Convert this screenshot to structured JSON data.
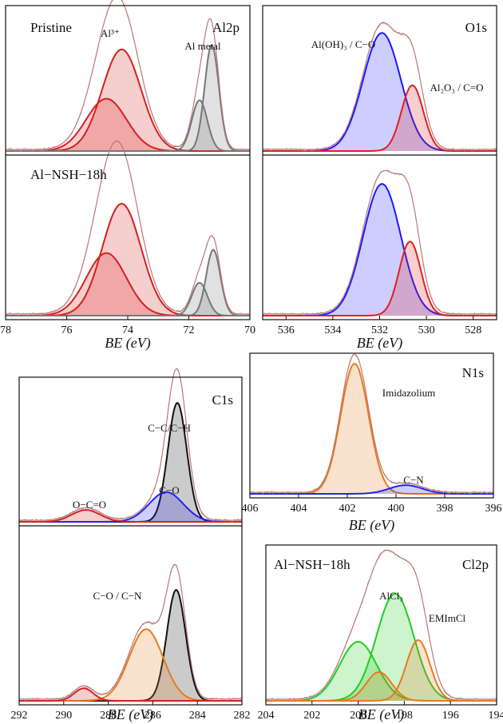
{
  "chart_data": [
    {
      "id": "al2p",
      "type": "area",
      "xlabel": "BE (eV)",
      "xlim": [
        78,
        70
      ],
      "x_ticks": [
        78,
        76,
        74,
        72,
        70
      ],
      "panels": [
        {
          "labels": [
            "Pristine",
            "Al2p",
            "Al³⁺",
            "Al metal"
          ],
          "components": [
            {
              "name": "Al³⁺",
              "center": 74.2,
              "fwhm": 1.5,
              "height": 0.68,
              "color": "#d42020"
            },
            {
              "name": "Al³⁺",
              "center": 74.7,
              "fwhm": 1.55,
              "height": 0.35,
              "color": "#d42020"
            },
            {
              "name": "Al metal",
              "center": 71.25,
              "fwhm": 0.55,
              "height": 0.71,
              "color": "#777777"
            },
            {
              "name": "Al metal",
              "center": 71.65,
              "fwhm": 0.6,
              "height": 0.34,
              "color": "#777777"
            }
          ]
        },
        {
          "labels": [
            "Al−NSH−18h"
          ],
          "components": [
            {
              "name": "Al³⁺",
              "center": 74.2,
              "fwhm": 1.5,
              "height": 0.68,
              "color": "#d42020"
            },
            {
              "name": "Al³⁺",
              "center": 74.7,
              "fwhm": 1.55,
              "height": 0.38,
              "color": "#d42020"
            },
            {
              "name": "Al metal",
              "center": 71.2,
              "fwhm": 0.55,
              "height": 0.4,
              "color": "#777777"
            },
            {
              "name": "Al metal",
              "center": 71.65,
              "fwhm": 0.6,
              "height": 0.2,
              "color": "#777777"
            }
          ]
        }
      ]
    },
    {
      "id": "o1s",
      "type": "area",
      "xlabel": "BE (eV)",
      "xlim": [
        537,
        527
      ],
      "x_ticks": [
        536,
        534,
        532,
        530,
        528
      ],
      "panels": [
        {
          "labels": [
            "O1s",
            "Al(OH)₃ / C−O",
            "Al₂O₃ / C=O"
          ],
          "components": [
            {
              "name": "Al(OH)₃ / C−O",
              "center": 531.9,
              "fwhm": 1.9,
              "height": 0.79,
              "color": "#1a1aff"
            },
            {
              "name": "Al₂O₃ / C=O",
              "center": 530.6,
              "fwhm": 1.1,
              "height": 0.44,
              "color": "#e02020"
            }
          ]
        },
        {
          "labels": [],
          "components": [
            {
              "name": "Al(OH)₃ / C−O",
              "center": 531.9,
              "fwhm": 1.9,
              "height": 0.8,
              "color": "#1a1aff"
            },
            {
              "name": "Al₂O₃ / C=O",
              "center": 530.7,
              "fwhm": 1.1,
              "height": 0.45,
              "color": "#e02020"
            }
          ]
        }
      ]
    },
    {
      "id": "c1s",
      "type": "area",
      "xlabel": "BE (eV)",
      "xlim": [
        292,
        282
      ],
      "x_ticks": [
        292,
        290,
        288,
        286,
        284,
        282
      ],
      "panels": [
        {
          "labels": [
            "C1s",
            "C−C/C−H",
            "C−O",
            "O−C=O"
          ],
          "components": [
            {
              "name": "C−C/C−H",
              "center": 284.9,
              "fwhm": 1.0,
              "height": 0.8,
              "color": "#111111"
            },
            {
              "name": "C−O",
              "center": 285.4,
              "fwhm": 1.8,
              "height": 0.2,
              "color": "#2222ee"
            },
            {
              "name": "O−C=O",
              "center": 289.0,
              "fwhm": 1.5,
              "height": 0.08,
              "color": "#d42020"
            }
          ]
        },
        {
          "labels": [
            "C−O / C−N"
          ],
          "components": [
            {
              "name": "C−C/C−H",
              "center": 284.95,
              "fwhm": 1.0,
              "height": 0.62,
              "color": "#111111"
            },
            {
              "name": "C−O / C−N",
              "center": 286.3,
              "fwhm": 1.8,
              "height": 0.4,
              "color": "#e57c1f"
            },
            {
              "name": "O−C=O",
              "center": 289.1,
              "fwhm": 1.0,
              "height": 0.07,
              "color": "#d42020"
            }
          ]
        }
      ]
    },
    {
      "id": "n1s",
      "type": "area",
      "xlabel": "BE (eV)",
      "xlim": [
        406,
        396
      ],
      "x_ticks": [
        406,
        404,
        402,
        400,
        398,
        396
      ],
      "panels": [
        {
          "labels": [
            "N1s",
            "Imidazolium",
            "C−N"
          ],
          "components": [
            {
              "name": "Imidazolium",
              "center": 401.7,
              "fwhm": 1.35,
              "height": 0.9,
              "color": "#e57c1f"
            },
            {
              "name": "C−N",
              "center": 399.6,
              "fwhm": 1.6,
              "height": 0.06,
              "color": "#2222ee"
            }
          ]
        }
      ]
    },
    {
      "id": "cl2p",
      "type": "area",
      "xlabel": "BE (eV)",
      "xlim": [
        204,
        194
      ],
      "x_ticks": [
        204,
        202,
        200,
        198,
        196,
        194
      ],
      "panels": [
        {
          "labels": [
            "Al−NSH−18h",
            "Cl2p",
            "AlCl₃",
            "EMImCl"
          ],
          "components": [
            {
              "name": "AlCl₃",
              "center": 198.4,
              "fwhm": 1.9,
              "height": 0.67,
              "color": "#22cc22"
            },
            {
              "name": "AlCl₃",
              "center": 200.0,
              "fwhm": 1.9,
              "height": 0.37,
              "color": "#22cc22"
            },
            {
              "name": "EMImCl",
              "center": 197.4,
              "fwhm": 1.2,
              "height": 0.38,
              "color": "#e57c1f"
            },
            {
              "name": "EMImCl",
              "center": 199.1,
              "fwhm": 1.3,
              "height": 0.18,
              "color": "#e57c1f"
            }
          ]
        }
      ]
    }
  ]
}
